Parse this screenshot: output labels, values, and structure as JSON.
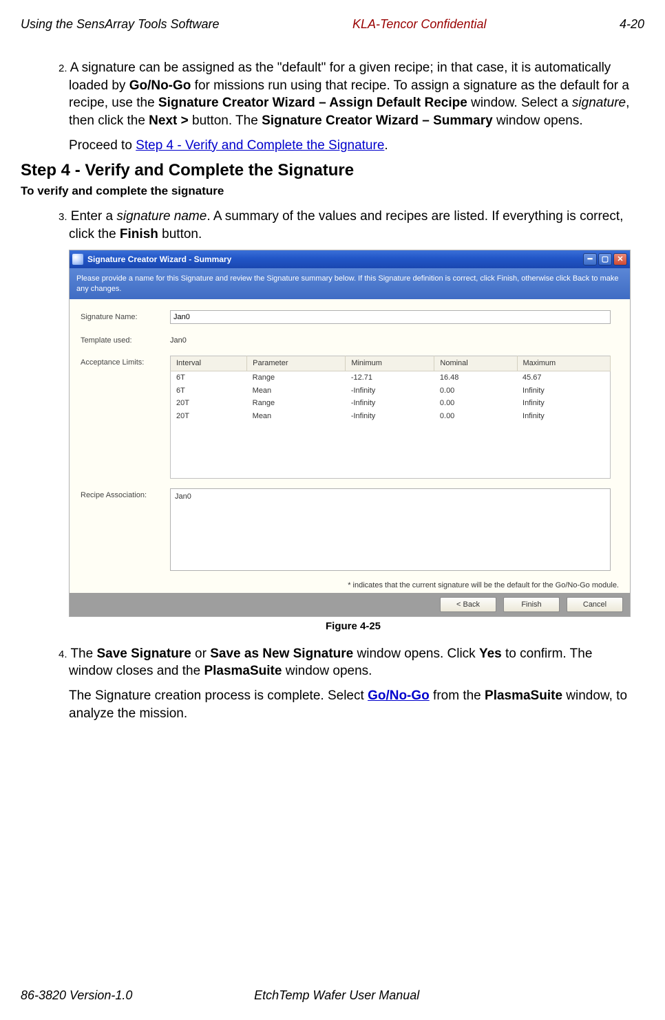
{
  "header": {
    "left": "Using the SensArray Tools Software",
    "center": "KLA-Tencor Confidential",
    "right": "4-20"
  },
  "step2": {
    "num": "2.",
    "t1": "A signature can be assigned as the \"default\" for a given recipe; in that case, it is automatically loaded by ",
    "b1": "Go/No-Go",
    "t2": " for missions run using that recipe. To assign a signature as the default for a recipe, use the ",
    "b2": "Signature Creator Wizard – Assign Default Recipe",
    "t3": " window. Select a ",
    "i1": "signature",
    "t4": ", then click the ",
    "b3": "Next >",
    "t5": " button. The ",
    "b4": "Signature Creator Wizard – Summary",
    "t6": " window opens.",
    "proceed_pre": "Proceed to ",
    "proceed_link": "Step 4 - Verify and Complete the Signature",
    "proceed_post": "."
  },
  "h2": "Step 4 - Verify and Complete the Signature",
  "subhead": "To verify and complete the signature",
  "step3": {
    "num": "3.",
    "t1": "Enter a ",
    "i1": "signature name",
    "t2": ". A summary of the values and recipes are listed. If everything is correct, click the ",
    "b1": "Finish",
    "t3": " button."
  },
  "wizard": {
    "title": "Signature Creator Wizard - Summary",
    "instruction": "Please provide a name for this Signature and review the Signature summary below. If this Signature definition is correct, click Finish, otherwise click Back to make any changes.",
    "labels": {
      "sig": "Signature Name:",
      "tpl": "Template used:",
      "acc": "Acceptance Limits:",
      "rec": "Recipe Association:"
    },
    "sig_value": "Jan0",
    "tpl_value": "Jan0",
    "table": {
      "headers": [
        "Interval",
        "Parameter",
        "Minimum",
        "Nominal",
        "Maximum"
      ],
      "rows": [
        [
          "6T",
          "Range",
          "-12.71",
          "16.48",
          "45.67"
        ],
        [
          "6T",
          "Mean",
          "-Infinity",
          "0.00",
          "Infinity"
        ],
        [
          "20T",
          "Range",
          "-Infinity",
          "0.00",
          "Infinity"
        ],
        [
          "20T",
          "Mean",
          "-Infinity",
          "0.00",
          "Infinity"
        ]
      ]
    },
    "recipe_value": "Jan0",
    "note": "* indicates that the current signature will be the   default for the Go/No-Go module.",
    "buttons": {
      "back": "< Back",
      "finish": "Finish",
      "cancel": "Cancel"
    }
  },
  "fig_caption": "Figure 4-25",
  "step4": {
    "num": "4.",
    "t1": "The ",
    "b1": "Save Signature",
    "t2": " or ",
    "b2": "Save as New Signature",
    "t3": " window opens. Click ",
    "b3": "Yes",
    "t4": " to confirm. The window closes and the ",
    "b4": "PlasmaSuite",
    "t5": " window opens.",
    "p2_t1": "The Signature creation process is complete. Select ",
    "p2_link": "Go/No-Go",
    "p2_t2": " from the ",
    "p2_b1": "PlasmaSuite",
    "p2_t3": " window, to analyze the mission."
  },
  "footer": {
    "left": "86-3820 Version-1.0",
    "center": "EtchTemp Wafer User Manual"
  }
}
